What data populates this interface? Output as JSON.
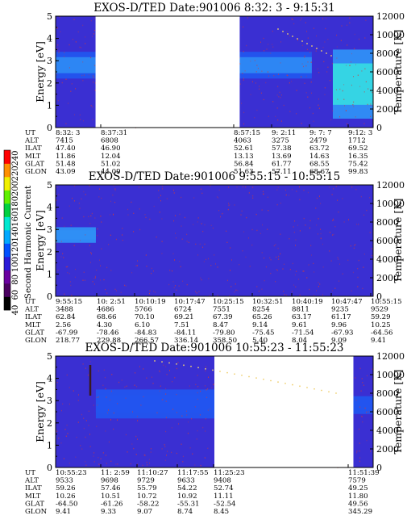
{
  "colors": {
    "background": "#3a2fd2",
    "band_blue": "#2255ee",
    "band_light": "#2f8ff5",
    "band_cyan": "#36e0e0",
    "speckle": "#d23a3a",
    "gap": "#ffffff"
  },
  "colorbar": {
    "label": "Second Harmonic Current",
    "ticks": [
      "40",
      "60",
      "80",
      "100",
      "120",
      "140",
      "160",
      "180",
      "200",
      "220",
      "240"
    ],
    "colors": [
      "#000000",
      "#4a0060",
      "#6a00a0",
      "#2a1ad8",
      "#0050ff",
      "#00a8ff",
      "#00e8d0",
      "#00d040",
      "#60f000",
      "#f0f000",
      "#ff9000",
      "#ff0000"
    ]
  },
  "chart_data": [
    {
      "type": "heatmap",
      "title": "EXOS-D/TED   Date:901006  8:32: 3 - 9:15:31",
      "ylabel": "Energy [eV]",
      "y2label": "Temperature [K]",
      "ylim": [
        0,
        5
      ],
      "y2lim": [
        0,
        12000
      ],
      "yticks": [
        "0",
        "1",
        "2",
        "3",
        "4",
        "5"
      ],
      "y2ticks": [
        "0",
        "2000",
        "4000",
        "6000",
        "8000",
        "10000",
        "12000"
      ],
      "data_gap": [
        "8:37:31",
        "8:57:15"
      ],
      "bands": [
        {
          "from": "8:32: 3",
          "to": "8:37:31",
          "energy_range": [
            2.2,
            3.4
          ],
          "intensity": "high"
        },
        {
          "from": "8:57:15",
          "to": "9:7: 7",
          "energy_range": [
            2.2,
            3.4
          ],
          "intensity": "high"
        },
        {
          "from": "9:10:00",
          "to": "9:15:31",
          "energy_range": [
            0.4,
            3.5
          ],
          "intensity": "very high"
        }
      ],
      "orbit": {
        "labels": [
          "UT",
          "ALT",
          "ILAT",
          "MLT",
          "GLAT",
          "GLON"
        ],
        "columns": [
          {
            "values": [
              "8:32: 3",
              "7415",
              "47.40",
              "11.86",
              "51.48",
              "43.09"
            ]
          },
          {
            "values": [
              "8:37:31",
              "6808",
              "46.90",
              "12.04",
              "51.02",
              "44.09"
            ]
          },
          {
            "values": [
              "8:57:15",
              "4063",
              "52.61",
              "13.13",
              "56.84",
              "51.63"
            ]
          },
          {
            "values": [
              "9: 2:11",
              "3275",
              "57.38",
              "13.69",
              "61.77",
              "57.11"
            ]
          },
          {
            "values": [
              "9: 7: 7",
              "2479",
              "63.72",
              "14.63",
              "68.55",
              "68.67"
            ]
          },
          {
            "values": [
              "9:12: 3",
              "1712",
              "69.52",
              "16.35",
              "75.42",
              "99.83"
            ]
          }
        ]
      }
    },
    {
      "type": "heatmap",
      "title": "EXOS-D/TED   Date:901006  9:55:15 - 10:55:15",
      "ylabel": "Energy [eV]",
      "y2label": "Temperature [K]",
      "ylim": [
        0,
        5
      ],
      "y2lim": [
        0,
        12000
      ],
      "yticks": [
        "0",
        "1",
        "2",
        "3",
        "4",
        "5"
      ],
      "y2ticks": [
        "0",
        "2000",
        "4000",
        "6000",
        "8000",
        "10000",
        "12000"
      ],
      "bands": [
        {
          "from": "9:55:15",
          "to": "10: 2:51",
          "energy_range": [
            2.4,
            3.1
          ],
          "intensity": "low"
        }
      ],
      "orbit": {
        "labels": [
          "UT",
          "ALT",
          "ILAT",
          "MLT",
          "GLAT",
          "GLON"
        ],
        "columns": [
          {
            "values": [
              "9:55:15",
              "3488",
              "62.84",
              "2.56",
              "-67.99",
              "218.77"
            ]
          },
          {
            "values": [
              "10: 2:51",
              "4686",
              "68.66",
              "4.30",
              "-78.46",
              "229.88"
            ]
          },
          {
            "values": [
              "10:10:19",
              "5766",
              "70.10",
              "6.10",
              "-84.83",
              "266.57"
            ]
          },
          {
            "values": [
              "10:17:47",
              "6724",
              "69.21",
              "7.51",
              "-84.11",
              "336.14"
            ]
          },
          {
            "values": [
              "10:25:15",
              "7551",
              "67.39",
              "8.47",
              "-79.80",
              "358.50"
            ]
          },
          {
            "values": [
              "10:32:51",
              "8254",
              "65.26",
              "9.14",
              "-75.45",
              "5.40"
            ]
          },
          {
            "values": [
              "10:40:19",
              "8811",
              "63.17",
              "9.61",
              "-71.54",
              "8.04"
            ]
          },
          {
            "values": [
              "10:47:47",
              "9235",
              "61.17",
              "9.96",
              "-67.93",
              "9.09"
            ]
          },
          {
            "values": [
              "10:55:15",
              "9529",
              "59.29",
              "10.25",
              "-64.56",
              "9.41"
            ]
          }
        ]
      }
    },
    {
      "type": "heatmap",
      "title": "EXOS-D/TED   Date:901006  10:55:23 - 11:55:23",
      "ylabel": "Energy [eV]",
      "y2label": "Temperature [K]",
      "ylim": [
        0,
        5
      ],
      "y2lim": [
        0,
        12000
      ],
      "yticks": [
        "0",
        "1",
        "2",
        "3",
        "4",
        "5"
      ],
      "y2ticks": [
        "0",
        "2000",
        "4000",
        "6000",
        "8000",
        "10000",
        "12000"
      ],
      "data_gap": [
        "11:25:23",
        "11:51:39"
      ],
      "bands": [
        {
          "from": "11: 2:59",
          "to": "11:25:23",
          "energy_range": [
            2.2,
            3.5
          ],
          "intensity": "medium"
        },
        {
          "from": "11:51:39",
          "to": "11:55:23",
          "energy_range": [
            2.4,
            3.2
          ],
          "intensity": "medium"
        }
      ],
      "orbit": {
        "labels": [
          "UT",
          "ALT",
          "ILAT",
          "MLT",
          "GLAT",
          "GLON"
        ],
        "columns": [
          {
            "values": [
              "10:55:23",
              "9533",
              "59.26",
              "10.26",
              "-64.50",
              "9.41"
            ]
          },
          {
            "values": [
              "11: 2:59",
              "9698",
              "57.46",
              "10.51",
              "-61.26",
              "9.33"
            ]
          },
          {
            "values": [
              "11:10:27",
              "9729",
              "55.79",
              "10.72",
              "-58.22",
              "9.07"
            ]
          },
          {
            "values": [
              "11:17:55",
              "9633",
              "54.22",
              "10.92",
              "-55.31",
              "8.74"
            ]
          },
          {
            "values": [
              "11:25:23",
              "9408",
              "52.74",
              "11.11",
              "-52.54",
              "8.45"
            ]
          },
          {
            "values": [
              "11:51:39",
              "7579",
              "49.25",
              "11.80",
              "49.56",
              "345.29"
            ]
          }
        ]
      }
    }
  ]
}
